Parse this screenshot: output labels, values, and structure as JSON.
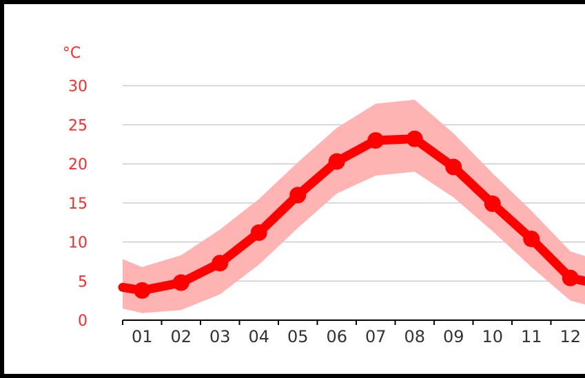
{
  "chart_data": {
    "type": "line",
    "unit_label": "°C",
    "categories": [
      "01",
      "02",
      "03",
      "04",
      "05",
      "06",
      "07",
      "08",
      "09",
      "10",
      "11",
      "12"
    ],
    "series": [
      {
        "values": [
          3.8,
          4.8,
          7.3,
          11.2,
          16.0,
          20.3,
          23.0,
          23.2,
          19.6,
          14.9,
          10.4,
          5.4
        ]
      }
    ],
    "band": {
      "upper": [
        6.8,
        8.3,
        11.6,
        15.5,
        20.2,
        24.6,
        27.7,
        28.2,
        23.9,
        18.8,
        14.0,
        8.8
      ],
      "lower": [
        0.9,
        1.3,
        3.3,
        7.1,
        11.8,
        16.2,
        18.5,
        19.0,
        15.7,
        11.4,
        6.8,
        2.5
      ]
    },
    "edge_values": {
      "start": 4.2,
      "end": 5.0,
      "upper_start": 7.8,
      "upper_end": 8.2,
      "lower_start": 1.5,
      "lower_end": 2.0
    },
    "ylim": [
      0,
      30
    ],
    "yticks": [
      0,
      5,
      10,
      15,
      20,
      25,
      30
    ],
    "grid": true,
    "colors": {
      "line": "#ff0000",
      "band": "#ffb3b3",
      "grid": "#cccccc",
      "ylabels": "#ff2a2a",
      "xlabels": "#333333",
      "axis": "#000000"
    }
  }
}
